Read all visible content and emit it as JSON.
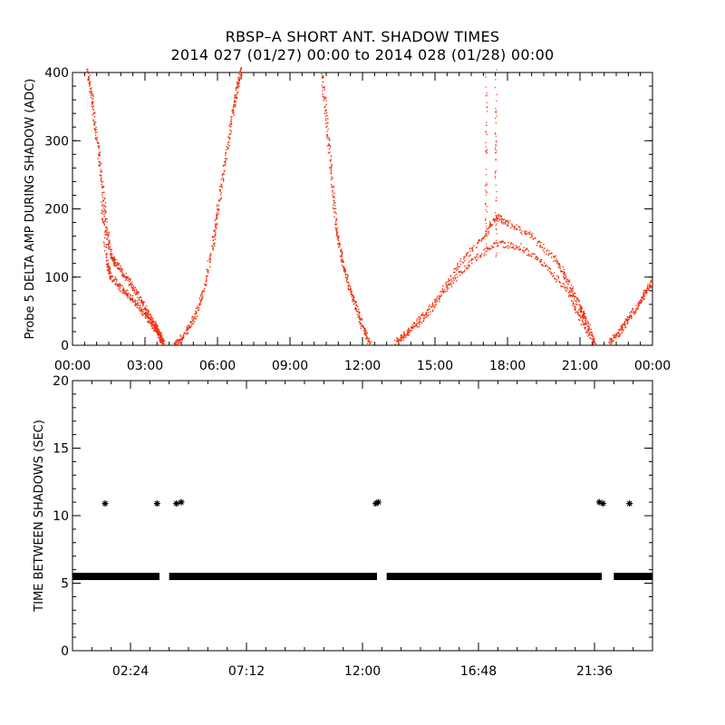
{
  "header": {
    "title_line1": "RBSP–A SHORT ANT. SHADOW TIMES",
    "title_line2": "2014 027 (01/27) 00:00 to 2014 028 (01/28) 00:00"
  },
  "colors": {
    "points": "#ee3311",
    "markers": "#000000",
    "axes": "#000000"
  },
  "chart_data": [
    {
      "type": "scatter",
      "name": "delta-amp-panel",
      "ylabel": "Probe 5 DELTA AMP DURING SHADOW (ADC)",
      "xlabel": "",
      "x_units": "hours",
      "xlim": [
        0,
        24
      ],
      "ylim": [
        0,
        400
      ],
      "x_tick_values": [
        0,
        3,
        6,
        9,
        12,
        15,
        18,
        21,
        24
      ],
      "x_tick_labels": [
        "00:00",
        "03:00",
        "06:00",
        "09:00",
        "12:00",
        "15:00",
        "18:00",
        "21:00",
        "00:00"
      ],
      "y_tick_values": [
        0,
        100,
        200,
        300,
        400
      ],
      "y_tick_labels": [
        "0",
        "100",
        "200",
        "300",
        "400"
      ],
      "series": [
        {
          "name": "band-1",
          "points": [
            [
              0.6,
              405
            ],
            [
              0.8,
              360
            ],
            [
              1.0,
              300
            ],
            [
              1.2,
              240
            ],
            [
              1.4,
              170
            ],
            [
              1.6,
              130
            ],
            [
              1.8,
              120
            ],
            [
              2.2,
              100
            ],
            [
              2.6,
              80
            ],
            [
              3.0,
              55
            ],
            [
              3.4,
              30
            ],
            [
              3.6,
              15
            ],
            [
              3.75,
              3
            ]
          ]
        },
        {
          "name": "band-2",
          "points": [
            [
              1.2,
              210
            ],
            [
              1.4,
              120
            ],
            [
              1.6,
              100
            ],
            [
              2.0,
              85
            ],
            [
              2.4,
              70
            ],
            [
              2.8,
              55
            ],
            [
              3.2,
              35
            ],
            [
              3.5,
              20
            ],
            [
              3.7,
              5
            ]
          ]
        },
        {
          "name": "rise-1",
          "points": [
            [
              4.2,
              2
            ],
            [
              4.6,
              15
            ],
            [
              5.0,
              40
            ],
            [
              5.4,
              80
            ],
            [
              5.8,
              150
            ],
            [
              6.0,
              200
            ],
            [
              6.3,
              270
            ],
            [
              6.6,
              340
            ],
            [
              6.8,
              380
            ],
            [
              7.0,
              405
            ]
          ]
        },
        {
          "name": "fall-2",
          "points": [
            [
              10.3,
              400
            ],
            [
              10.5,
              330
            ],
            [
              10.7,
              250
            ],
            [
              10.9,
              170
            ],
            [
              11.1,
              130
            ],
            [
              11.4,
              90
            ],
            [
              11.7,
              60
            ],
            [
              12.0,
              25
            ],
            [
              12.3,
              3
            ]
          ]
        },
        {
          "name": "arc-upper",
          "points": [
            [
              13.3,
              5
            ],
            [
              14.0,
              25
            ],
            [
              15.0,
              65
            ],
            [
              16.0,
              120
            ],
            [
              17.0,
              160
            ],
            [
              17.5,
              190
            ],
            [
              18.0,
              180
            ],
            [
              19.0,
              160
            ],
            [
              20.0,
              125
            ],
            [
              20.5,
              95
            ],
            [
              21.0,
              55
            ],
            [
              21.2,
              40
            ],
            [
              21.6,
              3
            ]
          ]
        },
        {
          "name": "arc-lower",
          "points": [
            [
              13.5,
              8
            ],
            [
              14.5,
              40
            ],
            [
              15.5,
              85
            ],
            [
              16.5,
              125
            ],
            [
              17.5,
              150
            ],
            [
              18.5,
              145
            ],
            [
              19.5,
              120
            ],
            [
              20.5,
              80
            ],
            [
              21.0,
              40
            ],
            [
              21.6,
              2
            ]
          ]
        },
        {
          "name": "rise-3",
          "points": [
            [
              22.2,
              5
            ],
            [
              22.6,
              20
            ],
            [
              23.0,
              40
            ],
            [
              23.4,
              60
            ],
            [
              23.7,
              80
            ],
            [
              24.0,
              95
            ]
          ]
        }
      ]
    },
    {
      "type": "scatter",
      "name": "time-between-shadows-panel",
      "ylabel": "TIME BETWEEN SHADOWS (SEC)",
      "xlabel": "",
      "x_units": "hours",
      "xlim": [
        0,
        24
      ],
      "ylim": [
        0,
        20
      ],
      "x_tick_values": [
        2.4,
        7.2,
        12.0,
        16.8,
        21.6
      ],
      "x_tick_labels": [
        "02:24",
        "07:12",
        "12:00",
        "16:48",
        "21:36"
      ],
      "y_tick_values": [
        0,
        5,
        10,
        15,
        20
      ],
      "y_tick_labels": [
        "0",
        "5",
        "10",
        "15",
        "20"
      ],
      "baseline_value": 5.5,
      "baseline_segments": [
        [
          0.0,
          3.6
        ],
        [
          4.0,
          12.6
        ],
        [
          13.0,
          21.9
        ],
        [
          22.4,
          24.0
        ]
      ],
      "marker": "asterisk",
      "points": [
        [
          1.35,
          10.9
        ],
        [
          3.5,
          10.9
        ],
        [
          4.3,
          10.9
        ],
        [
          4.5,
          11.0
        ],
        [
          12.55,
          10.9
        ],
        [
          12.65,
          11.0
        ],
        [
          21.8,
          11.0
        ],
        [
          21.95,
          10.9
        ],
        [
          23.05,
          10.9
        ],
        [
          6.0,
          5.5
        ],
        [
          17.5,
          5.5
        ]
      ]
    }
  ]
}
